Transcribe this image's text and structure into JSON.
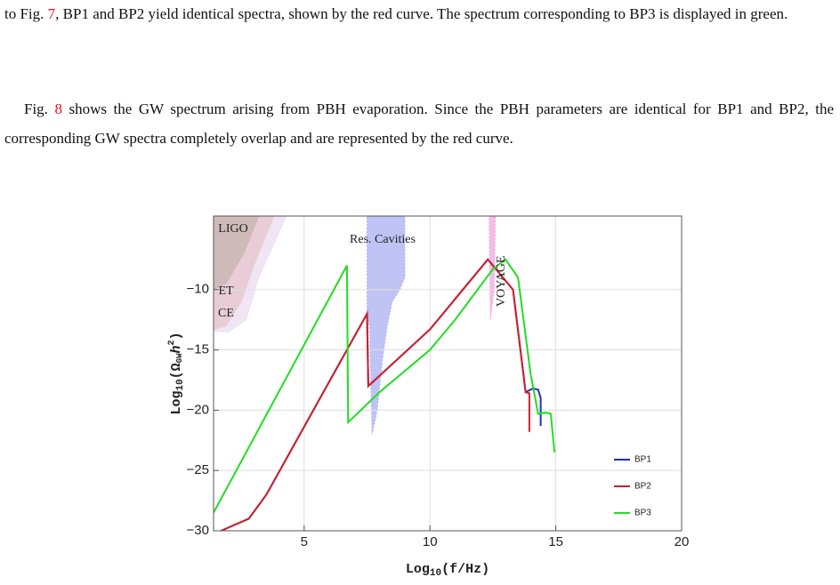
{
  "paragraphs": [
    {
      "before": "to Fig. ",
      "ref": "7",
      "after": ", BP1 and BP2 yield identical spectra, shown by the red curve. The spectrum corresponding to BP3 is displayed in green."
    },
    {
      "before": "Fig. ",
      "ref": "8",
      "after": " shows the GW spectrum arising from PBH evaporation. Since the PBH parameters are identical for BP1 and BP2, the corresponding GW spectra completely overlap and are represented by the red curve."
    }
  ],
  "chart_data": {
    "type": "line",
    "x_label": {
      "base": "Log",
      "sub": "10",
      "rest": "(f/Hz)"
    },
    "y_label": {
      "base": "Log",
      "sub": "10",
      "open": "(Ω",
      "sub2": "GW",
      "h": "h",
      "sup": "2",
      "close": ")"
    },
    "xlim": [
      1.4,
      20
    ],
    "ylim": [
      -30,
      -3.9
    ],
    "xticks": [
      5,
      10,
      15,
      20
    ],
    "yticks": [
      {
        "value": -30,
        "label": "−30"
      },
      {
        "value": -25,
        "label": "−25"
      },
      {
        "value": -20,
        "label": "−20"
      },
      {
        "value": -15,
        "label": "−15"
      },
      {
        "value": -10,
        "label": "−10"
      }
    ],
    "grid": true,
    "legend": "bottom-right",
    "regions": [
      {
        "name": "CE",
        "color": "#e9dcef",
        "x": [
          1.4,
          4.3,
          3.2,
          2.7,
          2.0,
          1.4
        ],
        "y": [
          -3.9,
          -3.9,
          -9,
          -12.5,
          -13.5,
          -13.5
        ]
      },
      {
        "name": "ET",
        "color": "#e6c4cc",
        "x": [
          1.4,
          3.8,
          3.0,
          2.5,
          1.9,
          1.4
        ],
        "y": [
          -3.9,
          -3.9,
          -8,
          -11,
          -13,
          -13.3
        ]
      },
      {
        "name": "LIGO",
        "color": "#c6b3ad",
        "x": [
          1.4,
          3.2,
          2.6,
          1.9,
          1.4
        ],
        "y": [
          -3.9,
          -3.9,
          -7,
          -9.5,
          -10
        ]
      },
      {
        "name": "Res. Cavities",
        "color": "#aab0f2",
        "x": [
          7.5,
          9.0,
          9.0,
          8.8,
          8.5,
          8.3,
          8.1,
          7.9,
          7.7,
          7.6,
          7.5
        ],
        "y": [
          -3.9,
          -3.9,
          -9,
          -10,
          -11,
          -13,
          -16,
          -20,
          -22,
          -13,
          -12
        ]
      },
      {
        "name": "VOYAGE",
        "color": "#f0a6e0",
        "x": [
          12.35,
          12.6,
          12.55,
          12.4
        ],
        "y": [
          -3.9,
          -3.9,
          -10,
          -12.5
        ]
      }
    ],
    "series": [
      {
        "name": "BP1",
        "color": "#1f2fbf",
        "x": [
          1.7,
          2.8,
          3.5,
          7.5,
          7.55,
          10,
          12.3,
          13.3,
          13.8,
          14.1,
          14.3,
          14.4,
          14.4
        ],
        "y": [
          -30,
          -29,
          -27,
          -12,
          -18,
          -13.3,
          -7.5,
          -10,
          -18.5,
          -18.2,
          -18.3,
          -19,
          -21.3
        ]
      },
      {
        "name": "BP2",
        "color": "#d0202a",
        "x": [
          1.7,
          2.8,
          3.5,
          7.5,
          7.55,
          10,
          12.3,
          13.3,
          13.8,
          13.95,
          13.95
        ],
        "y": [
          -30,
          -29,
          -27,
          -12,
          -18,
          -13.3,
          -7.5,
          -10,
          -18.5,
          -18.6,
          -21.8
        ]
      },
      {
        "name": "BP3",
        "color": "#22dd22",
        "x": [
          1.4,
          6.7,
          6.75,
          8,
          10,
          11,
          12.5,
          13,
          13.5,
          14,
          14.3,
          14.6,
          14.8,
          14.95
        ],
        "y": [
          -28.5,
          -8,
          -21,
          -18.5,
          -15,
          -12.5,
          -8.3,
          -7.5,
          -9,
          -17,
          -20.3,
          -20.2,
          -20.3,
          -23.5
        ]
      }
    ]
  }
}
